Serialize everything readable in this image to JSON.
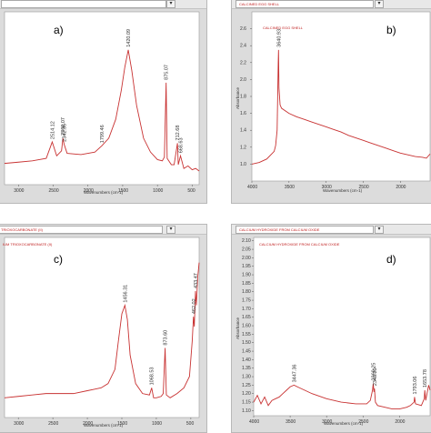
{
  "chart_data": [
    {
      "id": "a",
      "type": "line",
      "panel_label": "a)",
      "title": "",
      "xlabel": "Wavenumbers (cm-1)",
      "ylabel": "",
      "xlim": [
        3200,
        400
      ],
      "x_ticks": [
        3000,
        2500,
        2000,
        1500,
        1000,
        500
      ],
      "y_ticks": [],
      "peaks": [
        {
          "x": 2514.12,
          "label": "2514.12"
        },
        {
          "x": 2342.35,
          "label": "2342.35"
        },
        {
          "x": 2360.07,
          "label": "2360.07"
        },
        {
          "x": 1799.46,
          "label": "1799.46"
        },
        {
          "x": 1420.09,
          "label": "1420.09"
        },
        {
          "x": 875.07,
          "label": "875.07"
        },
        {
          "x": 712.68,
          "label": "712.68"
        },
        {
          "x": 668.63,
          "label": "668.63"
        }
      ],
      "series": [
        {
          "x": [
            3200,
            3000,
            2800,
            2600,
            2514,
            2450,
            2380,
            2360,
            2342,
            2300,
            2100,
            1900,
            1799,
            1700,
            1600,
            1520,
            1470,
            1420,
            1370,
            1300,
            1200,
            1100,
            1000,
            930,
            900,
            875,
            860,
            800,
            760,
            712,
            700,
            668,
            620,
            560,
            500,
            450,
            400
          ],
          "y": [
            0.1,
            0.11,
            0.12,
            0.14,
            0.27,
            0.16,
            0.2,
            0.3,
            0.25,
            0.18,
            0.17,
            0.19,
            0.24,
            0.3,
            0.45,
            0.68,
            0.86,
            1.0,
            0.84,
            0.56,
            0.3,
            0.19,
            0.13,
            0.12,
            0.15,
            0.74,
            0.14,
            0.09,
            0.09,
            0.26,
            0.09,
            0.16,
            0.06,
            0.08,
            0.05,
            0.06,
            0.04
          ]
        }
      ]
    },
    {
      "id": "b",
      "type": "line",
      "panel_label": "b)",
      "title": "CALCINED EGG SHELL",
      "legend": [
        "CALCINED EGG SHELL"
      ],
      "xlabel": "Wavenumbers (cm-1)",
      "ylabel": "Absorbance",
      "xlim": [
        4000,
        1600
      ],
      "ylim": [
        0.8,
        2.8
      ],
      "x_ticks": [
        4000,
        3500,
        3000,
        2500,
        2000
      ],
      "y_ticks": [
        1.0,
        1.2,
        1.4,
        1.6,
        1.8,
        2.0,
        2.2,
        2.4,
        2.6
      ],
      "peaks": [
        {
          "x": 3640.93,
          "label": "3640.93"
        }
      ],
      "series": [
        {
          "x": [
            4000,
            3900,
            3800,
            3700,
            3680,
            3660,
            3645,
            3641,
            3635,
            3620,
            3600,
            3500,
            3400,
            3300,
            3200,
            3100,
            3000,
            2900,
            2800,
            2700,
            2600,
            2500,
            2400,
            2300,
            2200,
            2100,
            2000,
            1900,
            1800,
            1700,
            1650,
            1600
          ],
          "y": [
            1.0,
            1.02,
            1.06,
            1.15,
            1.22,
            1.4,
            2.2,
            2.35,
            1.9,
            1.7,
            1.66,
            1.6,
            1.56,
            1.53,
            1.5,
            1.47,
            1.44,
            1.41,
            1.38,
            1.34,
            1.31,
            1.28,
            1.25,
            1.22,
            1.19,
            1.16,
            1.13,
            1.11,
            1.09,
            1.08,
            1.07,
            1.12
          ]
        }
      ]
    },
    {
      "id": "c",
      "type": "line",
      "panel_label": "c)",
      "title": "TRIOXOCARBONATE (II)",
      "legend": [
        "IUM TRIOXOCARBONATE (II)"
      ],
      "xlabel": "Wavenumbers (cm-1)",
      "ylabel": "",
      "xlim": [
        3200,
        380
      ],
      "x_ticks": [
        3000,
        2500,
        2000,
        1500,
        1000,
        500
      ],
      "y_ticks": [],
      "peaks": [
        {
          "x": 1456.31,
          "label": "1456.31"
        },
        {
          "x": 1068.53,
          "label": "1068.53"
        },
        {
          "x": 873.6,
          "label": "873.60"
        },
        {
          "x": 462.02,
          "label": "462.02"
        },
        {
          "x": 433.47,
          "label": "433.47"
        }
      ],
      "series": [
        {
          "x": [
            3200,
            3000,
            2800,
            2600,
            2400,
            2200,
            2000,
            1900,
            1800,
            1700,
            1600,
            1550,
            1500,
            1456,
            1420,
            1380,
            1300,
            1200,
            1100,
            1068,
            1040,
            1000,
            930,
            900,
            873,
            855,
            800,
            700,
            600,
            520,
            480,
            462,
            450,
            433,
            420,
            400,
            380
          ],
          "y": [
            0.05,
            0.06,
            0.07,
            0.08,
            0.08,
            0.08,
            0.1,
            0.11,
            0.12,
            0.15,
            0.25,
            0.45,
            0.64,
            0.7,
            0.6,
            0.35,
            0.15,
            0.08,
            0.07,
            0.12,
            0.05,
            0.05,
            0.06,
            0.08,
            0.4,
            0.07,
            0.05,
            0.08,
            0.12,
            0.2,
            0.45,
            0.62,
            0.55,
            0.8,
            0.7,
            0.9,
            1.0
          ]
        }
      ]
    },
    {
      "id": "d",
      "type": "line",
      "panel_label": "d)",
      "title": "CALCIUM HYDROXIDE FROM CALCIUM OXIDE",
      "legend": [
        "CALCIUM HYDROXIDE FROM CALCIUM OXIDE"
      ],
      "xlabel": "Wavenumbers (cm-1)",
      "ylabel": "Absorbance",
      "xlim": [
        4000,
        1580
      ],
      "ylim": [
        1.07,
        2.12
      ],
      "x_ticks": [
        4000,
        3500,
        3000,
        2500,
        2000
      ],
      "y_ticks": [
        1.1,
        1.15,
        1.2,
        1.25,
        1.3,
        1.35,
        1.4,
        1.45,
        1.5,
        1.55,
        1.6,
        1.65,
        1.7,
        1.75,
        1.8,
        1.85,
        1.9,
        1.95,
        2.0,
        2.05,
        2.1
      ],
      "peaks": [
        {
          "x": 3447.36,
          "label": "3447.36"
        },
        {
          "x": 2343.2,
          "label": "2343.20"
        },
        {
          "x": 2360.25,
          "label": "2360.25"
        },
        {
          "x": 1793.06,
          "label": "1793.06"
        },
        {
          "x": 1653.78,
          "label": "1653.78"
        }
      ],
      "series": [
        {
          "x": [
            4000,
            3950,
            3900,
            3850,
            3800,
            3750,
            3700,
            3650,
            3600,
            3550,
            3500,
            3447,
            3400,
            3300,
            3200,
            3000,
            2800,
            2600,
            2450,
            2400,
            2370,
            2360,
            2350,
            2343,
            2330,
            2300,
            2200,
            2100,
            2000,
            1900,
            1850,
            1800,
            1793,
            1780,
            1700,
            1660,
            1653,
            1640,
            1600,
            1580
          ],
          "y": [
            1.15,
            1.19,
            1.14,
            1.18,
            1.13,
            1.16,
            1.17,
            1.18,
            1.2,
            1.22,
            1.24,
            1.25,
            1.24,
            1.22,
            1.2,
            1.17,
            1.15,
            1.14,
            1.14,
            1.16,
            1.22,
            1.26,
            1.21,
            1.23,
            1.15,
            1.13,
            1.12,
            1.11,
            1.11,
            1.12,
            1.13,
            1.15,
            1.18,
            1.14,
            1.13,
            1.17,
            1.22,
            1.16,
            1.25,
            1.22
          ]
        }
      ]
    }
  ]
}
